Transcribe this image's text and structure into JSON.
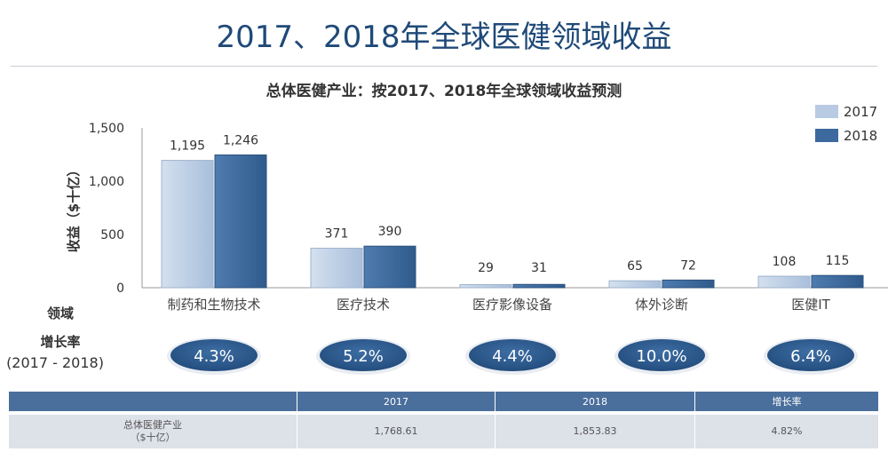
{
  "title": "2017、2018年全球医健领域收益",
  "subtitle": "总体医健产业：按2017、2018年全球领域收益预测",
  "colors": {
    "y2017": "#b9cbe2",
    "y2018": "#3d6a9e",
    "title": "#1f4a78",
    "badge": "#2e5c90"
  },
  "chart_data": {
    "type": "bar",
    "title": "总体医健产业：按2017、2018年全球领域收益预测",
    "categories": [
      "制药和生物技术",
      "医疗技术",
      "医疗影像设备",
      "体外诊断",
      "医健IT"
    ],
    "series": [
      {
        "name": "2017",
        "values": [
          1195,
          371,
          29,
          65,
          108
        ],
        "labels": [
          "1,195",
          "371",
          "29",
          "65",
          "108"
        ]
      },
      {
        "name": "2018",
        "values": [
          1246,
          390,
          31,
          72,
          115
        ],
        "labels": [
          "1,246",
          "390",
          "31",
          "72",
          "115"
        ]
      }
    ],
    "ylabel": "收益（$十亿）",
    "xlabel": "领域",
    "ylim": [
      0,
      1500
    ],
    "yticks": [
      0,
      500,
      1000,
      1500
    ],
    "ytick_labels": [
      "0",
      "500",
      "1,000",
      "1,500"
    ],
    "legend_position": "top-right",
    "grid": false
  },
  "growth": {
    "label": "增长率",
    "period": "(2017 - 2018)",
    "values": [
      "4.3%",
      "5.2%",
      "4.4%",
      "10.0%",
      "6.4%"
    ]
  },
  "table": {
    "headers": [
      "",
      "2017",
      "2018",
      "增长率"
    ],
    "row": {
      "label_line1": "总体医健产业",
      "label_line2": "（$十亿）",
      "v2017": "1,768.61",
      "v2018": "1,853.83",
      "growth": "4.82%"
    }
  }
}
